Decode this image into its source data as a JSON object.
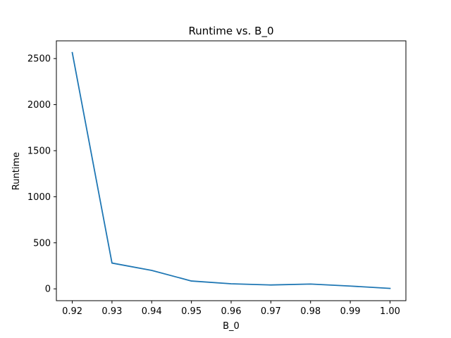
{
  "chart_data": {
    "type": "line",
    "title": "Runtime vs. B_0",
    "xlabel": "B_0",
    "ylabel": "Runtime",
    "xlim": [
      0.916,
      1.004
    ],
    "ylim": [
      -128.5,
      2692.5
    ],
    "xticks": [
      0.92,
      0.93,
      0.94,
      0.95,
      0.96,
      0.97,
      0.98,
      0.99,
      1.0
    ],
    "xtick_labels": [
      "0.92",
      "0.93",
      "0.94",
      "0.95",
      "0.96",
      "0.97",
      "0.98",
      "0.99",
      "1.00"
    ],
    "yticks": [
      0,
      500,
      1000,
      1500,
      2000,
      2500
    ],
    "ytick_labels": [
      "0",
      "500",
      "1000",
      "1500",
      "2000",
      "2500"
    ],
    "grid": false,
    "series": [
      {
        "color": "#1f77b4",
        "x": [
          0.92,
          0.93,
          0.94,
          0.95,
          0.96,
          0.97,
          0.98,
          0.99,
          1.0
        ],
        "y": [
          2565,
          280,
          200,
          85,
          55,
          42,
          52,
          30,
          5
        ]
      }
    ]
  }
}
